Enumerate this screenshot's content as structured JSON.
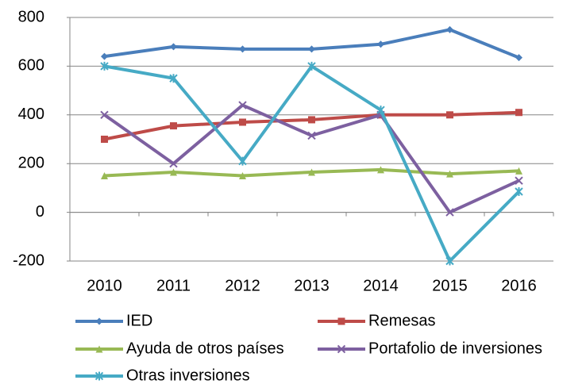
{
  "chart_data": {
    "type": "line",
    "categories": [
      "2010",
      "2011",
      "2012",
      "2013",
      "2014",
      "2015",
      "2016"
    ],
    "series": [
      {
        "name": "IED",
        "color": "#4a7ebb",
        "marker": "diamond",
        "values": [
          640,
          680,
          670,
          670,
          690,
          750,
          635
        ]
      },
      {
        "name": "Remesas",
        "color": "#be4b48",
        "marker": "square",
        "values": [
          300,
          355,
          370,
          380,
          400,
          400,
          410
        ]
      },
      {
        "name": "Ayuda de otros países",
        "color": "#98b954",
        "marker": "triangle",
        "values": [
          150,
          165,
          150,
          165,
          175,
          158,
          170
        ]
      },
      {
        "name": "Portafolio de inversiones",
        "color": "#7d60a0",
        "marker": "x",
        "values": [
          400,
          200,
          440,
          315,
          400,
          0,
          130
        ]
      },
      {
        "name": "Otras inversiones",
        "color": "#46aac5",
        "marker": "star",
        "values": [
          600,
          550,
          210,
          600,
          420,
          -200,
          85
        ]
      }
    ],
    "ylim": [
      -200,
      800
    ],
    "yticks": [
      -200,
      0,
      200,
      400,
      600,
      800
    ],
    "grid": true,
    "legend": "bottom"
  }
}
